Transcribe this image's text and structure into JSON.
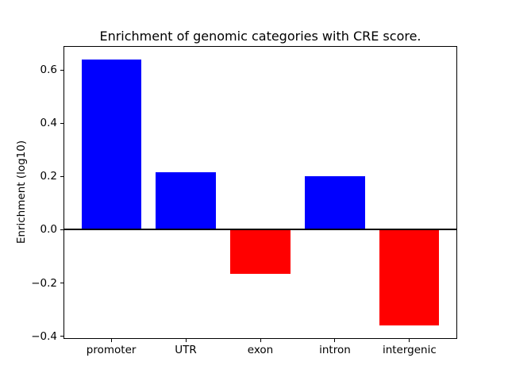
{
  "chart_data": {
    "type": "bar",
    "title": "Enrichment of genomic categories with CRE score.",
    "xlabel": "",
    "ylabel": "Enrichment (log10)",
    "categories": [
      "promoter",
      "UTR",
      "exon",
      "intron",
      "intergenic"
    ],
    "values": [
      0.64,
      0.215,
      -0.165,
      0.2,
      -0.36
    ],
    "bar_colors": [
      "#0000ff",
      "#0000ff",
      "#ff0000",
      "#0000ff",
      "#ff0000"
    ],
    "positive_color": "#0000ff",
    "negative_color": "#ff0000",
    "ylim": [
      -0.41,
      0.69
    ],
    "yticks": [
      0.6,
      0.4,
      0.2,
      0.0,
      -0.2,
      -0.4
    ],
    "ytick_labels": [
      "0.6",
      "0.4",
      "0.2",
      "0.0",
      "−0.2",
      "−0.4"
    ],
    "grid": false,
    "legend": "none",
    "zero_line": true,
    "axis_color": "#000000",
    "background_color": "#ffffff",
    "bar_width_fraction": 0.8
  }
}
